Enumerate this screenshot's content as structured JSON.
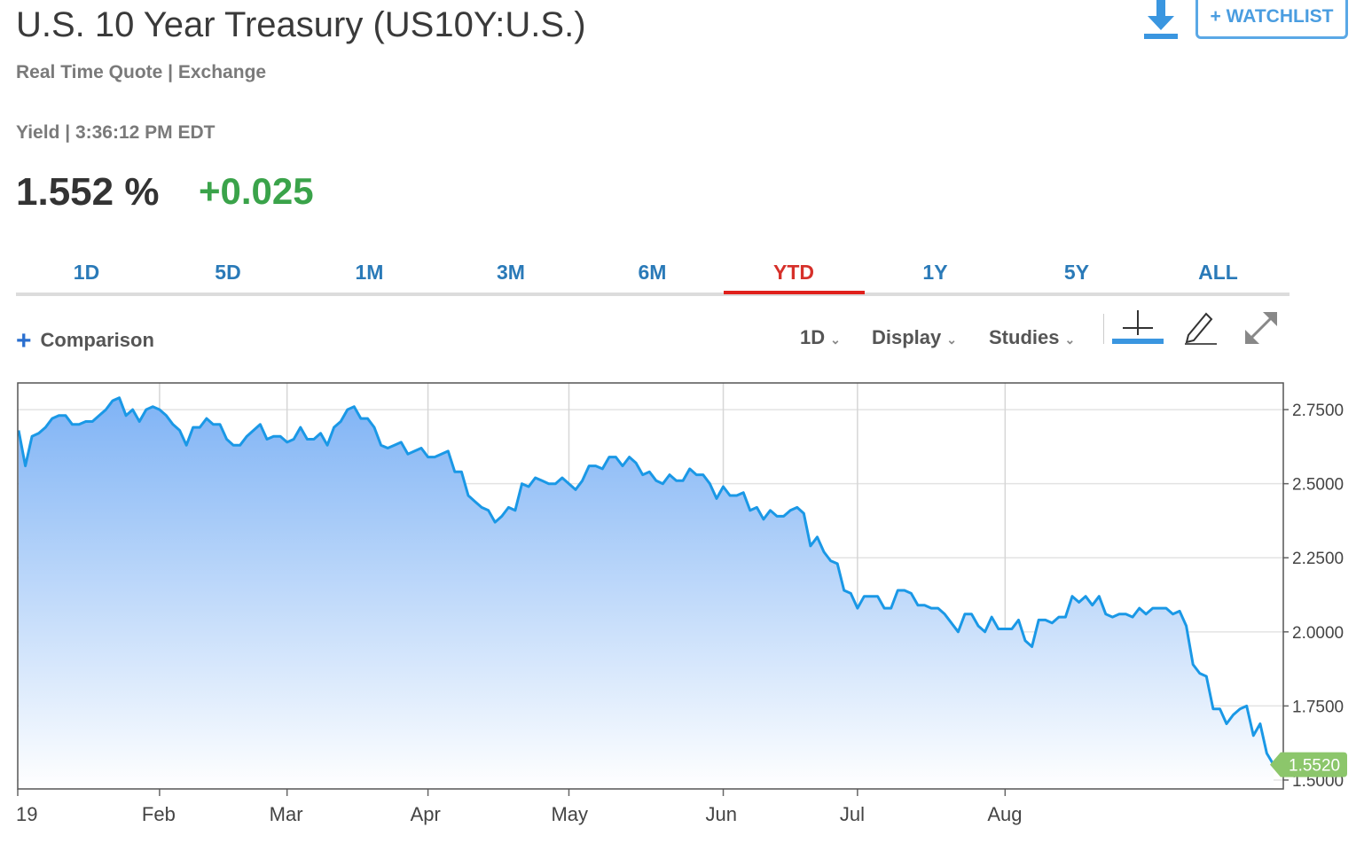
{
  "header": {
    "title": "U.S. 10 Year Treasury (US10Y:U.S.)",
    "subtitle": "Real Time Quote | Exchange",
    "yield_line": "Yield | 3:36:12 PM EDT",
    "price": "1.552 %",
    "change": "+0.025",
    "watchlist_label": "+ WATCHLIST"
  },
  "colors": {
    "accent_blue": "#2a7ab8",
    "active_tab": "#e0201c",
    "positive": "#3aa34a",
    "line": "#1a98e6",
    "last_badge": "#8cc66b"
  },
  "tabs": [
    {
      "label": "1D",
      "active": false
    },
    {
      "label": "5D",
      "active": false
    },
    {
      "label": "1M",
      "active": false
    },
    {
      "label": "3M",
      "active": false
    },
    {
      "label": "6M",
      "active": false
    },
    {
      "label": "YTD",
      "active": true
    },
    {
      "label": "1Y",
      "active": false
    },
    {
      "label": "5Y",
      "active": false
    },
    {
      "label": "ALL",
      "active": false
    }
  ],
  "controls": {
    "comparison": "Comparison",
    "interval": "1D",
    "display": "Display",
    "studies": "Studies"
  },
  "icons": [
    "download-icon",
    "plus-icon",
    "crosshair-icon",
    "pencil-icon",
    "expand-icon"
  ],
  "chart_data": {
    "type": "area",
    "x_tick_labels": [
      "19",
      "Feb",
      "Mar",
      "Apr",
      "May",
      "Jun",
      "Jul",
      "Aug"
    ],
    "y_tick_labels": [
      "2.7500",
      "2.5000",
      "2.2500",
      "2.0000",
      "1.7500",
      "1.5000"
    ],
    "y_ticks": [
      2.75,
      2.5,
      2.25,
      2.0,
      1.75,
      1.5
    ],
    "ylim": [
      1.47,
      2.84
    ],
    "last_value_label": "1.5520",
    "grid": true,
    "series": [
      {
        "values": [
          2.68,
          2.56,
          2.66,
          2.67,
          2.69,
          2.72,
          2.73,
          2.73,
          2.7,
          2.7,
          2.71,
          2.71,
          2.73,
          2.75,
          2.78,
          2.79,
          2.73,
          2.75,
          2.71,
          2.75,
          2.76,
          2.75,
          2.73,
          2.7,
          2.68,
          2.63,
          2.69,
          2.69,
          2.72,
          2.7,
          2.7,
          2.65,
          2.63,
          2.63,
          2.66,
          2.68,
          2.7,
          2.65,
          2.66,
          2.66,
          2.64,
          2.65,
          2.69,
          2.65,
          2.65,
          2.67,
          2.63,
          2.69,
          2.71,
          2.75,
          2.76,
          2.72,
          2.72,
          2.69,
          2.63,
          2.62,
          2.63,
          2.64,
          2.6,
          2.61,
          2.62,
          2.59,
          2.59,
          2.6,
          2.61,
          2.54,
          2.54,
          2.46,
          2.44,
          2.42,
          2.41,
          2.37,
          2.39,
          2.42,
          2.41,
          2.5,
          2.49,
          2.52,
          2.51,
          2.5,
          2.5,
          2.52,
          2.5,
          2.48,
          2.51,
          2.56,
          2.56,
          2.55,
          2.59,
          2.59,
          2.56,
          2.59,
          2.57,
          2.53,
          2.54,
          2.51,
          2.5,
          2.53,
          2.51,
          2.51,
          2.55,
          2.53,
          2.53,
          2.5,
          2.45,
          2.49,
          2.46,
          2.46,
          2.47,
          2.41,
          2.42,
          2.38,
          2.41,
          2.39,
          2.39,
          2.41,
          2.42,
          2.4,
          2.29,
          2.32,
          2.27,
          2.24,
          2.23,
          2.14,
          2.13,
          2.08,
          2.12,
          2.12,
          2.12,
          2.08,
          2.08,
          2.14,
          2.14,
          2.13,
          2.09,
          2.09,
          2.08,
          2.08,
          2.06,
          2.03,
          2.0,
          2.06,
          2.06,
          2.02,
          2.0,
          2.05,
          2.01,
          2.01,
          2.01,
          2.04,
          1.97,
          1.95,
          2.04,
          2.04,
          2.03,
          2.05,
          2.05,
          2.12,
          2.1,
          2.12,
          2.09,
          2.12,
          2.06,
          2.05,
          2.06,
          2.06,
          2.05,
          2.08,
          2.06,
          2.08,
          2.08,
          2.08,
          2.06,
          2.07,
          2.02,
          1.89,
          1.86,
          1.85,
          1.74,
          1.74,
          1.69,
          1.72,
          1.74,
          1.75,
          1.65,
          1.69,
          1.59,
          1.552
        ]
      }
    ]
  }
}
